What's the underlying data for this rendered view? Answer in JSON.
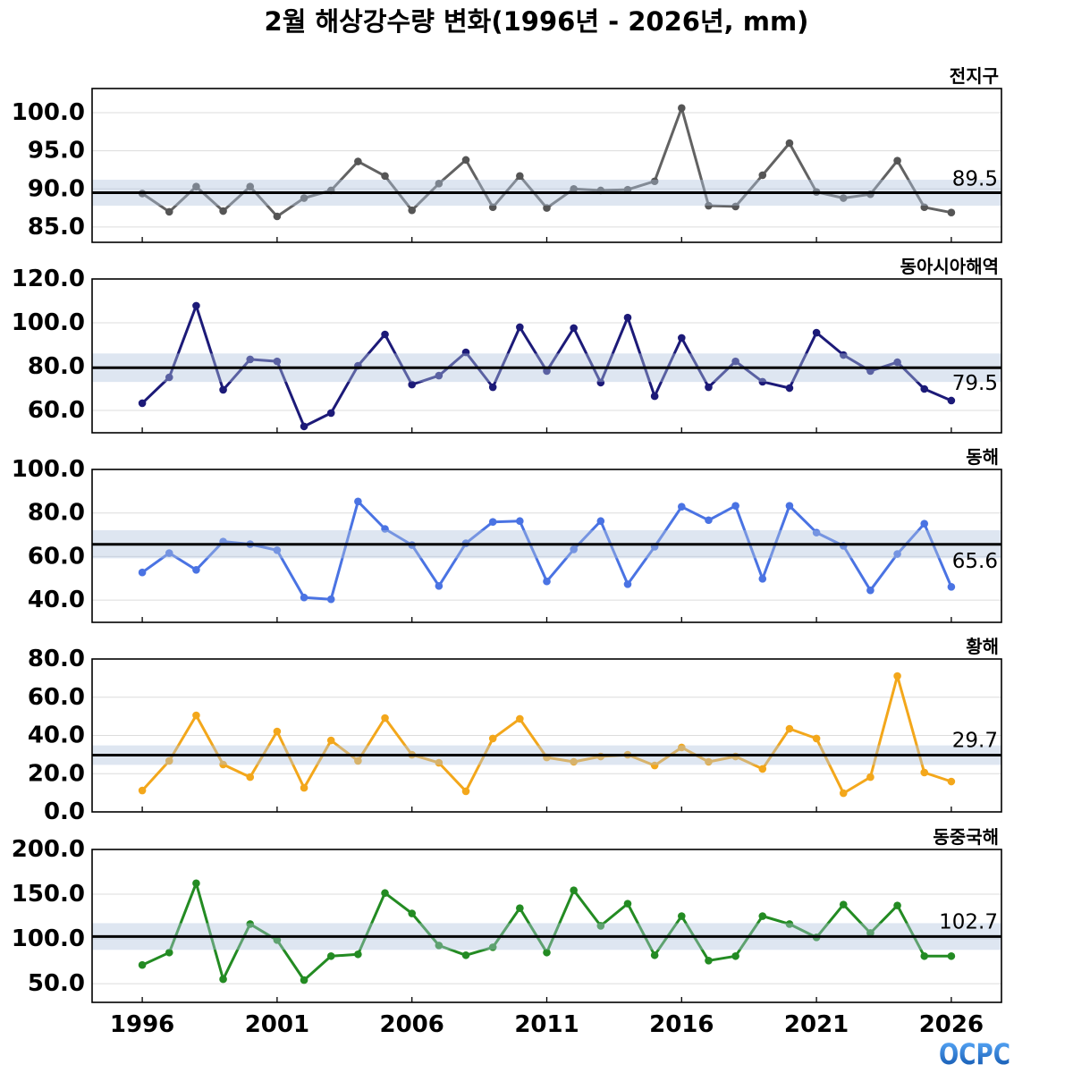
{
  "title": "2월 해상강수량 변화(1996년 - 2026년, mm)",
  "logo": "OCPC",
  "colors": {
    "mean_line": "#000000",
    "band": "#b0c4de",
    "grid": "#dcdcdc",
    "logo_top": "#5fb0ff",
    "logo_bottom": "#0b4fa8"
  },
  "chart_data": [
    {
      "type": "line",
      "title": "전지구",
      "x": [
        1996,
        1997,
        1998,
        1999,
        2000,
        2001,
        2002,
        2003,
        2004,
        2005,
        2006,
        2007,
        2008,
        2009,
        2010,
        2011,
        2012,
        2013,
        2014,
        2015,
        2016,
        2017,
        2018,
        2019,
        2020,
        2021,
        2022,
        2023,
        2024,
        2025,
        2026
      ],
      "xlim": [
        1994.14,
        2027.86
      ],
      "xticks": [
        1996,
        2001,
        2006,
        2011,
        2016,
        2021,
        2026
      ],
      "ylim": [
        83.0,
        103.16
      ],
      "yticks": [
        85,
        90,
        95,
        100
      ],
      "ytick_labels": [
        "85.0",
        "90.0",
        "95.0",
        "100.0"
      ],
      "grid": true,
      "series": [
        {
          "values": [
            89.4,
            87.0,
            90.3,
            87.1,
            90.3,
            86.4,
            88.8,
            89.8,
            93.6,
            91.7,
            87.2,
            90.7,
            93.8,
            87.6,
            91.7,
            87.5,
            90.0,
            89.8,
            89.9,
            91.0,
            100.6,
            87.8,
            87.7,
            91.8,
            96.0,
            89.6,
            88.8,
            89.3,
            93.7,
            87.6,
            86.9
          ],
          "color": "#626262",
          "marker_color": "#555555"
        }
      ],
      "mean": 89.5,
      "mean_label": "89.5",
      "band": [
        87.8,
        91.2
      ]
    },
    {
      "type": "line",
      "title": "동아시아해역",
      "x": [
        1996,
        1997,
        1998,
        1999,
        2000,
        2001,
        2002,
        2003,
        2004,
        2005,
        2006,
        2007,
        2008,
        2009,
        2010,
        2011,
        2012,
        2013,
        2014,
        2015,
        2016,
        2017,
        2018,
        2019,
        2020,
        2021,
        2022,
        2023,
        2024,
        2025,
        2026
      ],
      "xlim": [
        1994.14,
        2027.86
      ],
      "xticks": [
        1996,
        2001,
        2006,
        2011,
        2016,
        2021,
        2026
      ],
      "ylim": [
        49.8,
        120.0
      ],
      "yticks": [
        60,
        80,
        100,
        120
      ],
      "ytick_labels": [
        "60.0",
        "80.0",
        "100.0",
        "120.0"
      ],
      "grid": true,
      "series": [
        {
          "values": [
            63.3,
            75.1,
            107.8,
            69.4,
            83.3,
            82.4,
            52.7,
            58.8,
            80.4,
            94.7,
            71.8,
            75.9,
            86.5,
            70.6,
            98.0,
            78.0,
            97.6,
            72.7,
            102.4,
            66.5,
            93.1,
            70.6,
            82.4,
            73.1,
            70.2,
            95.5,
            85.3,
            78.0,
            82.0,
            69.8,
            64.5
          ],
          "color": "#1c1a78",
          "marker_color": "#1c1a78"
        }
      ],
      "mean": 79.5,
      "mean_label": "79.5",
      "band": [
        73.0,
        86.0
      ]
    },
    {
      "type": "line",
      "title": "동해",
      "x": [
        1996,
        1997,
        1998,
        1999,
        2000,
        2001,
        2002,
        2003,
        2004,
        2005,
        2006,
        2007,
        2008,
        2009,
        2010,
        2011,
        2012,
        2013,
        2014,
        2015,
        2016,
        2017,
        2018,
        2019,
        2020,
        2021,
        2022,
        2023,
        2024,
        2025,
        2026
      ],
      "xlim": [
        1994.14,
        2027.86
      ],
      "xticks": [
        1996,
        2001,
        2006,
        2011,
        2016,
        2021,
        2026
      ],
      "ylim": [
        29.8,
        100.0
      ],
      "yticks": [
        40,
        60,
        80,
        100
      ],
      "ytick_labels": [
        "40.0",
        "60.0",
        "80.0",
        "100.0"
      ],
      "grid": true,
      "series": [
        {
          "values": [
            52.7,
            61.6,
            53.9,
            66.9,
            65.7,
            62.9,
            41.2,
            40.4,
            85.3,
            72.7,
            65.3,
            46.5,
            66.1,
            75.9,
            76.3,
            48.6,
            63.3,
            76.3,
            47.3,
            64.5,
            82.9,
            76.7,
            83.3,
            49.8,
            83.3,
            71.0,
            64.9,
            44.5,
            61.2,
            75.1,
            46.1
          ],
          "color": "#4a73e3",
          "marker_color": "#4a73e3"
        }
      ],
      "mean": 65.6,
      "mean_label": "65.6",
      "band": [
        59.2,
        72.1
      ]
    },
    {
      "type": "line",
      "title": "황해",
      "x": [
        1996,
        1997,
        1998,
        1999,
        2000,
        2001,
        2002,
        2003,
        2004,
        2005,
        2006,
        2007,
        2008,
        2009,
        2010,
        2011,
        2012,
        2013,
        2014,
        2015,
        2016,
        2017,
        2018,
        2019,
        2020,
        2021,
        2022,
        2023,
        2024,
        2025,
        2026
      ],
      "xlim": [
        1994.14,
        2027.86
      ],
      "xticks": [
        1996,
        2001,
        2006,
        2011,
        2016,
        2021,
        2026
      ],
      "ylim": [
        0.0,
        80.0
      ],
      "yticks": [
        0,
        20,
        40,
        60,
        80
      ],
      "ytick_labels": [
        "0.0",
        "20.0",
        "40.0",
        "60.0",
        "80.0"
      ],
      "grid": true,
      "series": [
        {
          "values": [
            11.2,
            26.7,
            50.5,
            24.8,
            18.2,
            42.1,
            12.6,
            37.4,
            26.7,
            49.1,
            29.9,
            25.7,
            10.8,
            38.4,
            48.7,
            28.5,
            26.2,
            29.0,
            29.9,
            24.3,
            33.7,
            26.2,
            29.0,
            22.5,
            43.5,
            38.4,
            9.8,
            18.2,
            71.1,
            20.6,
            15.9
          ],
          "color": "#f3a71b",
          "marker_color": "#f3a71b"
        }
      ],
      "mean": 29.7,
      "mean_label": "29.7",
      "band": [
        24.6,
        34.8
      ]
    },
    {
      "type": "line",
      "title": "동중국해",
      "x": [
        1996,
        1997,
        1998,
        1999,
        2000,
        2001,
        2002,
        2003,
        2004,
        2005,
        2006,
        2007,
        2008,
        2009,
        2010,
        2011,
        2012,
        2013,
        2014,
        2015,
        2016,
        2017,
        2018,
        2019,
        2020,
        2021,
        2022,
        2023,
        2024,
        2025,
        2026
      ],
      "xlim": [
        1994.14,
        2027.86
      ],
      "xticks": [
        1996,
        2001,
        2006,
        2011,
        2016,
        2021,
        2026
      ],
      "xtick_labels": [
        "1996",
        "2001",
        "2006",
        "2011",
        "2016",
        "2021",
        "2026"
      ],
      "ylim": [
        29.1,
        200.0
      ],
      "yticks": [
        50,
        100,
        150,
        200
      ],
      "ytick_labels": [
        "50.0",
        "100.0",
        "150.0",
        "200.0"
      ],
      "grid": true,
      "series": [
        {
          "values": [
            70.9,
            84.8,
            162.2,
            55.0,
            116.6,
            98.7,
            54.0,
            80.8,
            82.8,
            151.3,
            128.5,
            92.7,
            81.8,
            90.7,
            134.4,
            84.8,
            154.3,
            114.6,
            139.4,
            81.8,
            125.5,
            75.8,
            80.8,
            125.5,
            116.6,
            101.7,
            138.4,
            106.6,
            137.4,
            80.8,
            80.8
          ],
          "color": "#238b22",
          "marker_color": "#238b22"
        }
      ],
      "mean": 102.7,
      "mean_label": "102.7",
      "band": [
        87.8,
        117.6
      ]
    }
  ]
}
